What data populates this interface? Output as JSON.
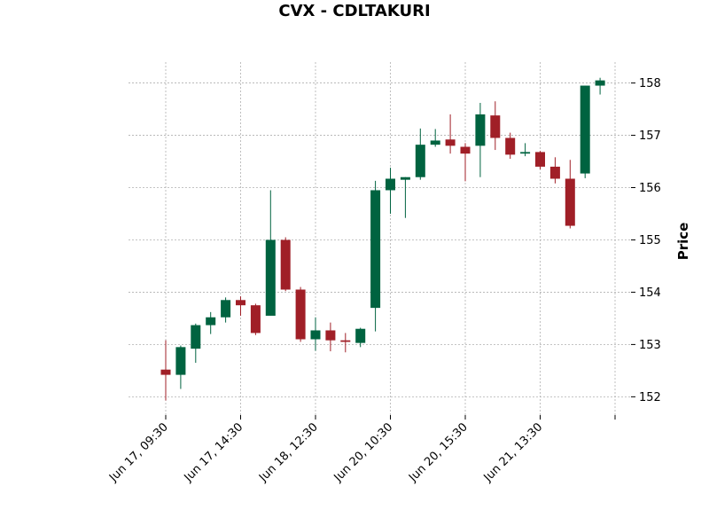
{
  "chart_data": {
    "type": "candlestick",
    "title": "CVX - CDLTAKURI",
    "ylabel": "Price",
    "xlabel": "",
    "ylim": [
      151.65,
      158.4
    ],
    "y_ticks": [
      152,
      153,
      154,
      155,
      156,
      157,
      158
    ],
    "x_tick_labels": [
      "Jun 17, 09:30",
      "Jun 17, 14:30",
      "Jun 18, 12:30",
      "Jun 20, 10:30",
      "Jun 20, 15:30",
      "Jun 21, 13:30",
      ""
    ],
    "x_tick_indices": [
      0,
      5,
      10,
      15,
      20,
      25,
      30
    ],
    "grid": true,
    "up_color": "#006340",
    "down_color": "#A01F27",
    "candles": [
      {
        "o": 152.52,
        "h": 153.08,
        "l": 151.93,
        "c": 152.42
      },
      {
        "o": 152.42,
        "h": 152.98,
        "l": 152.15,
        "c": 152.95
      },
      {
        "o": 152.92,
        "h": 153.4,
        "l": 152.65,
        "c": 153.37
      },
      {
        "o": 153.37,
        "h": 153.62,
        "l": 153.2,
        "c": 153.52
      },
      {
        "o": 153.52,
        "h": 153.9,
        "l": 153.42,
        "c": 153.85
      },
      {
        "o": 153.85,
        "h": 153.92,
        "l": 153.55,
        "c": 153.75
      },
      {
        "o": 153.75,
        "h": 153.78,
        "l": 153.18,
        "c": 153.22
      },
      {
        "o": 153.55,
        "h": 155.95,
        "l": 153.55,
        "c": 155.0
      },
      {
        "o": 155.0,
        "h": 155.05,
        "l": 154.02,
        "c": 154.05
      },
      {
        "o": 154.05,
        "h": 154.1,
        "l": 153.05,
        "c": 153.1
      },
      {
        "o": 153.1,
        "h": 153.52,
        "l": 152.88,
        "c": 153.27
      },
      {
        "o": 153.27,
        "h": 153.42,
        "l": 152.87,
        "c": 153.08
      },
      {
        "o": 153.08,
        "h": 153.22,
        "l": 152.85,
        "c": 153.05
      },
      {
        "o": 153.03,
        "h": 153.32,
        "l": 152.95,
        "c": 153.3
      },
      {
        "o": 153.7,
        "h": 156.13,
        "l": 153.25,
        "c": 155.95
      },
      {
        "o": 155.95,
        "h": 156.38,
        "l": 155.5,
        "c": 156.17
      },
      {
        "o": 156.15,
        "h": 156.2,
        "l": 155.42,
        "c": 156.2
      },
      {
        "o": 156.2,
        "h": 157.13,
        "l": 156.15,
        "c": 156.82
      },
      {
        "o": 156.82,
        "h": 157.12,
        "l": 156.78,
        "c": 156.9
      },
      {
        "o": 156.92,
        "h": 157.4,
        "l": 156.65,
        "c": 156.8
      },
      {
        "o": 156.78,
        "h": 156.85,
        "l": 156.12,
        "c": 156.65
      },
      {
        "o": 156.8,
        "h": 157.62,
        "l": 156.2,
        "c": 157.4
      },
      {
        "o": 157.38,
        "h": 157.65,
        "l": 156.72,
        "c": 156.95
      },
      {
        "o": 156.95,
        "h": 157.05,
        "l": 156.55,
        "c": 156.63
      },
      {
        "o": 156.65,
        "h": 156.85,
        "l": 156.6,
        "c": 156.68
      },
      {
        "o": 156.68,
        "h": 156.7,
        "l": 156.35,
        "c": 156.4
      },
      {
        "o": 156.4,
        "h": 156.58,
        "l": 156.08,
        "c": 156.17
      },
      {
        "o": 156.17,
        "h": 156.53,
        "l": 155.22,
        "c": 155.27
      },
      {
        "o": 156.27,
        "h": 157.95,
        "l": 156.18,
        "c": 157.95
      },
      {
        "o": 157.95,
        "h": 158.1,
        "l": 157.78,
        "c": 158.05
      }
    ]
  }
}
